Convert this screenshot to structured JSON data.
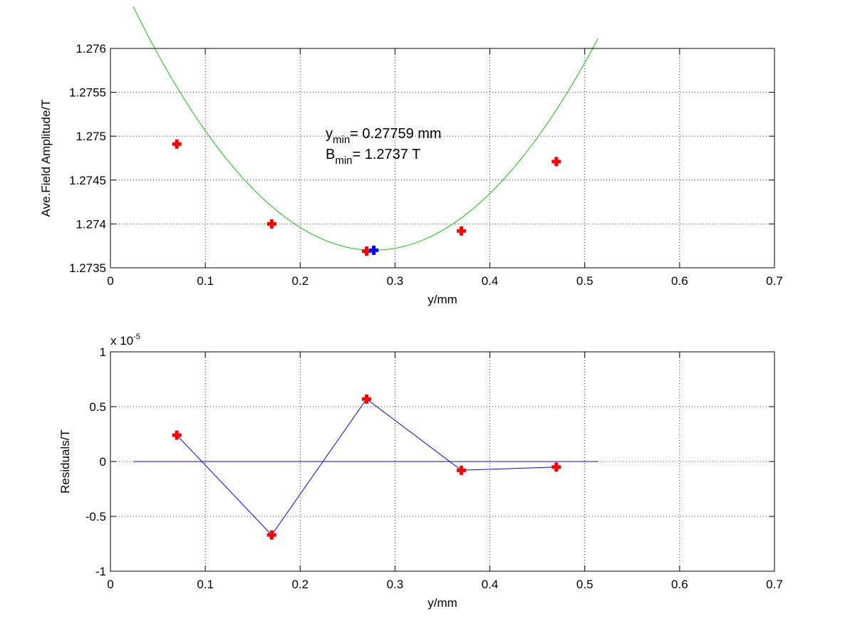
{
  "colors": {
    "background": "#ffffff",
    "axes_box": "#000000",
    "grid": "#000000",
    "fit_curve": "#00cc00",
    "data_marker": "#ff0000",
    "min_marker": "#0000ff",
    "residual_line": "#0000ff"
  },
  "chart_data": [
    {
      "type": "scatter",
      "title": "",
      "xlabel": "y/mm",
      "ylabel": "Ave.Field Amplitude/T",
      "xlim": [
        0,
        0.7
      ],
      "ylim": [
        1.2735,
        1.276
      ],
      "grid": true,
      "xticks": [
        0,
        0.1,
        0.2,
        0.3,
        0.4,
        0.5,
        0.6,
        0.7
      ],
      "xtick_labels": [
        "0",
        "0.1",
        "0.2",
        "0.3",
        "0.4",
        "0.5",
        "0.6",
        "0.7"
      ],
      "yticks": [
        1.2735,
        1.274,
        1.2745,
        1.275,
        1.2755,
        1.276
      ],
      "ytick_labels": [
        "1.2735",
        "1.274",
        "1.2745",
        "1.275",
        "1.2755",
        "1.276"
      ],
      "series": [
        {
          "kind": "points",
          "x": [
            0.07,
            0.17,
            0.27,
            0.37,
            0.47
          ],
          "y": [
            1.27491,
            1.274,
            1.27369,
            1.27392,
            1.27471
          ]
        },
        {
          "kind": "fit-curve",
          "x_range": [
            0.024,
            0.514
          ],
          "vertex": [
            0.27759,
            1.2737
          ],
          "coefficient": 0.04318
        },
        {
          "kind": "minimum-point",
          "x": [
            0.27759
          ],
          "y": [
            1.2737
          ]
        }
      ],
      "annotations": {
        "ymin": {
          "var": "y",
          "sub": "min",
          "text": "= 0.27759 mm"
        },
        "bmin": {
          "var": "B",
          "sub": "min",
          "text": "= 1.2737 T"
        }
      }
    },
    {
      "type": "line",
      "title": "",
      "xlabel": "y/mm",
      "ylabel": "Residuals/T",
      "xlim": [
        0,
        0.7
      ],
      "ylim": [
        -1e-05,
        1e-05
      ],
      "grid": true,
      "scale_label": {
        "prefix": "x 10",
        "exponent": "-5"
      },
      "xticks": [
        0,
        0.1,
        0.2,
        0.3,
        0.4,
        0.5,
        0.6,
        0.7
      ],
      "xtick_labels": [
        "0",
        "0.1",
        "0.2",
        "0.3",
        "0.4",
        "0.5",
        "0.6",
        "0.7"
      ],
      "yticks": [
        -1e-05,
        -5e-06,
        0,
        5e-06,
        1e-05
      ],
      "ytick_labels": [
        "-1",
        "-0.5",
        "0",
        "0.5",
        "1"
      ],
      "series": [
        {
          "kind": "points",
          "x": [
            0.07,
            0.17,
            0.27,
            0.37,
            0.47
          ],
          "y": [
            2.4e-06,
            -6.7e-06,
            5.7e-06,
            -8e-07,
            -5e-07
          ]
        },
        {
          "kind": "zero-line",
          "x": [
            0.024,
            0.514
          ],
          "y": [
            0,
            0
          ]
        }
      ]
    }
  ]
}
